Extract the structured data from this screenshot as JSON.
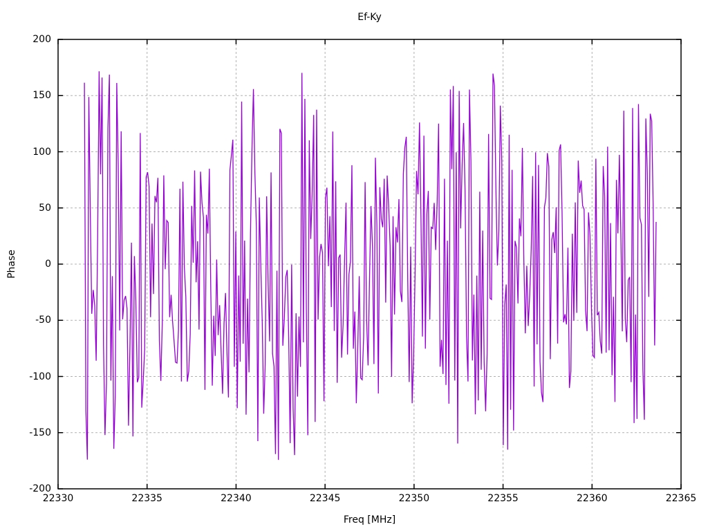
{
  "figure": {
    "background": "#ffffff",
    "text_color": "#000000"
  },
  "chart_data": {
    "type": "line",
    "title": "Ef-Ky",
    "xlabel": "Freq [MHz]",
    "ylabel": "Phase",
    "xlim": [
      22330,
      22365
    ],
    "ylim": [
      -200,
      200
    ],
    "x_ticks": [
      22330,
      22335,
      22340,
      22345,
      22350,
      22355,
      22360,
      22365
    ],
    "y_ticks": [
      -200,
      -150,
      -100,
      -50,
      0,
      50,
      100,
      150,
      200
    ],
    "grid": true,
    "grid_style": "dashed",
    "grid_color": "#b0b0b0",
    "legend_position": "none",
    "series": [
      {
        "name": "Ef-Ky",
        "color": "#9400d3",
        "style": "lines",
        "x_start": 22331.48,
        "x_end": 22363.6,
        "n_points": 390,
        "y_min": -180,
        "y_max": 180,
        "character": "wrapped interferometric phase noise, approximately uniform between -180 and 180 degrees",
        "seed": 987654321
      }
    ]
  }
}
